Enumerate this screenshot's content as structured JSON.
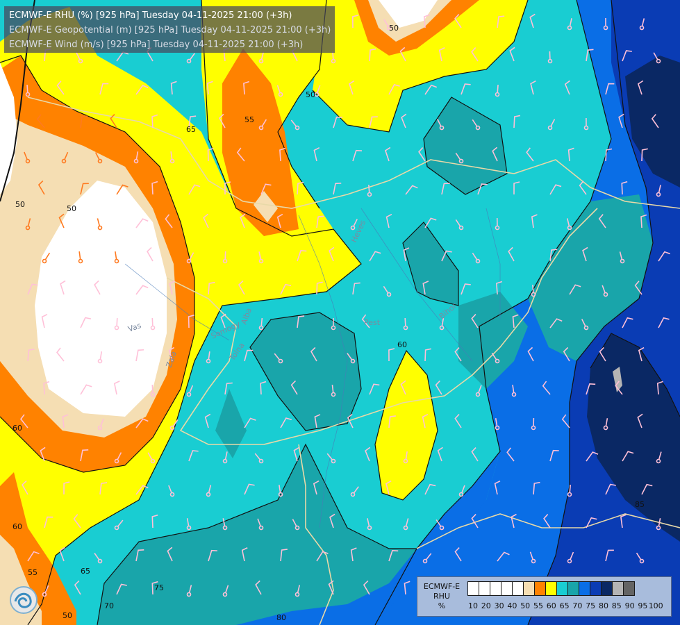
{
  "header": {
    "lines": [
      "ECMWF-E RHU (%) [925 hPa] Tuesday 04-11-2025 21:00 (+3h)",
      "ECMWF-E Geopotential (m) [925 hPa] Tuesday 04-11-2025 21:00 (+3h)",
      "ECMWF-E Wind (m/s) [925 hPa] Tuesday 04-11-2025 21:00 (+3h)"
    ]
  },
  "legend": {
    "title_lines": [
      "ECMWF-E",
      "RHU",
      "%"
    ],
    "colors": [
      "#ffffff",
      "#ffffff",
      "#ffffff",
      "#ffffff",
      "#ffffff",
      "#f5deb3",
      "#ff8200",
      "#ffff00",
      "#19cdd2",
      "#19a5aa",
      "#0a6ee6",
      "#0a3cb4",
      "#0a2864",
      "#b4b4b4",
      "#646464"
    ],
    "ticks": [
      "10",
      "20",
      "30",
      "40",
      "50",
      "55",
      "60",
      "65",
      "70",
      "75",
      "80",
      "85",
      "90",
      "95",
      "100"
    ]
  },
  "map": {
    "contour_labels": [
      {
        "text": "50"
      },
      {
        "text": "65"
      },
      {
        "text": "55"
      },
      {
        "text": "50"
      },
      {
        "text": "50"
      },
      {
        "text": "60"
      },
      {
        "text": "60"
      },
      {
        "text": "55"
      },
      {
        "text": "65"
      },
      {
        "text": "50"
      },
      {
        "text": "70"
      },
      {
        "text": "75"
      },
      {
        "text": "80"
      },
      {
        "text": "85"
      },
      {
        "text": "60"
      },
      {
        "text": "50"
      }
    ],
    "place_labels": [
      {
        "text": "Vas"
      },
      {
        "text": "Zala"
      },
      {
        "text": "Tolna"
      },
      {
        "text": "Pest"
      },
      {
        "text": "Heves"
      },
      {
        "text": "Bihor"
      },
      {
        "text": "Somogy"
      },
      {
        "text": "Alba"
      }
    ]
  }
}
